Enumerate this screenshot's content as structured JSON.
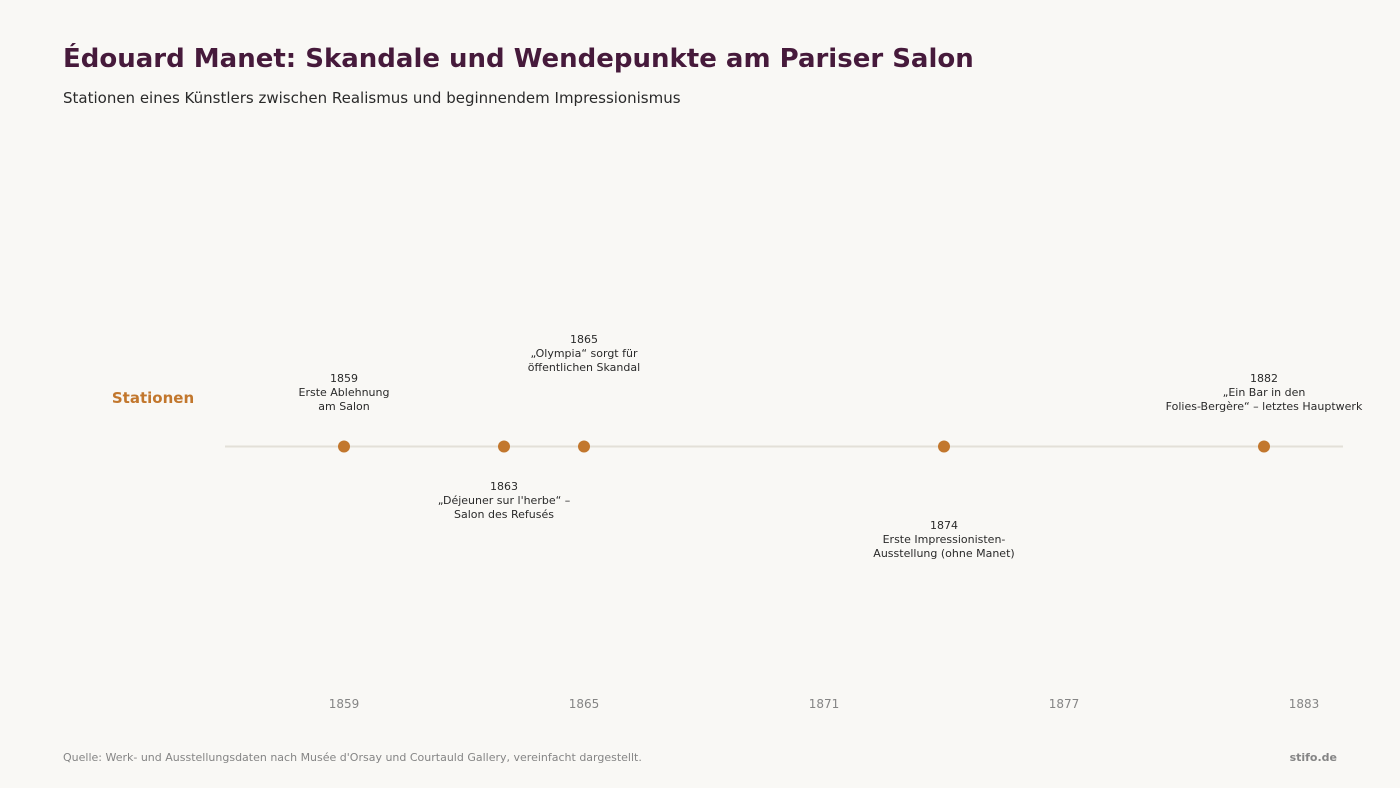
{
  "header": {
    "title": "Édouard Manet: Skandale und Wendepunkte am Pariser Salon",
    "subtitle": "Stationen eines Künstlers zwischen Realismus und beginnendem Impressionismus"
  },
  "footer": {
    "source": "Quelle: Werk- und Ausstellungsdaten nach Musée d'Orsay und Courtauld Gallery, vereinfacht dargestellt.",
    "brand": "stifo.de"
  },
  "colors": {
    "title": "#461a3b",
    "marker": "#c2772d",
    "axis_line": "#e3e0d8",
    "tick_text": "#858585",
    "label_text": "#2a2a2a"
  },
  "chart_data": {
    "type": "scatter",
    "subtype": "timeline",
    "row_label": "Stationen",
    "x_ticks": [
      1859,
      1865,
      1871,
      1877,
      1883
    ],
    "xlim": [
      1856,
      1884
    ],
    "grid": false,
    "events": [
      {
        "year": 1859,
        "label_lines": [
          "1859",
          "Erste Ablehnung",
          "am Salon"
        ],
        "position": "above"
      },
      {
        "year": 1863,
        "label_lines": [
          "1863",
          "„Déjeuner sur l'herbe“ –",
          "Salon des Refusés"
        ],
        "position": "below"
      },
      {
        "year": 1865,
        "label_lines": [
          "1865",
          "„Olympia“ sorgt für",
          "öffentlichen Skandal"
        ],
        "position": "above-high"
      },
      {
        "year": 1874,
        "label_lines": [
          "1874",
          "Erste Impressionisten-",
          "Ausstellung (ohne Manet)"
        ],
        "position": "below-low"
      },
      {
        "year": 1882,
        "label_lines": [
          "1882",
          "„Ein Bar in den",
          "Folies-Bergère“ – letztes Hauptwerk"
        ],
        "position": "above"
      }
    ]
  }
}
